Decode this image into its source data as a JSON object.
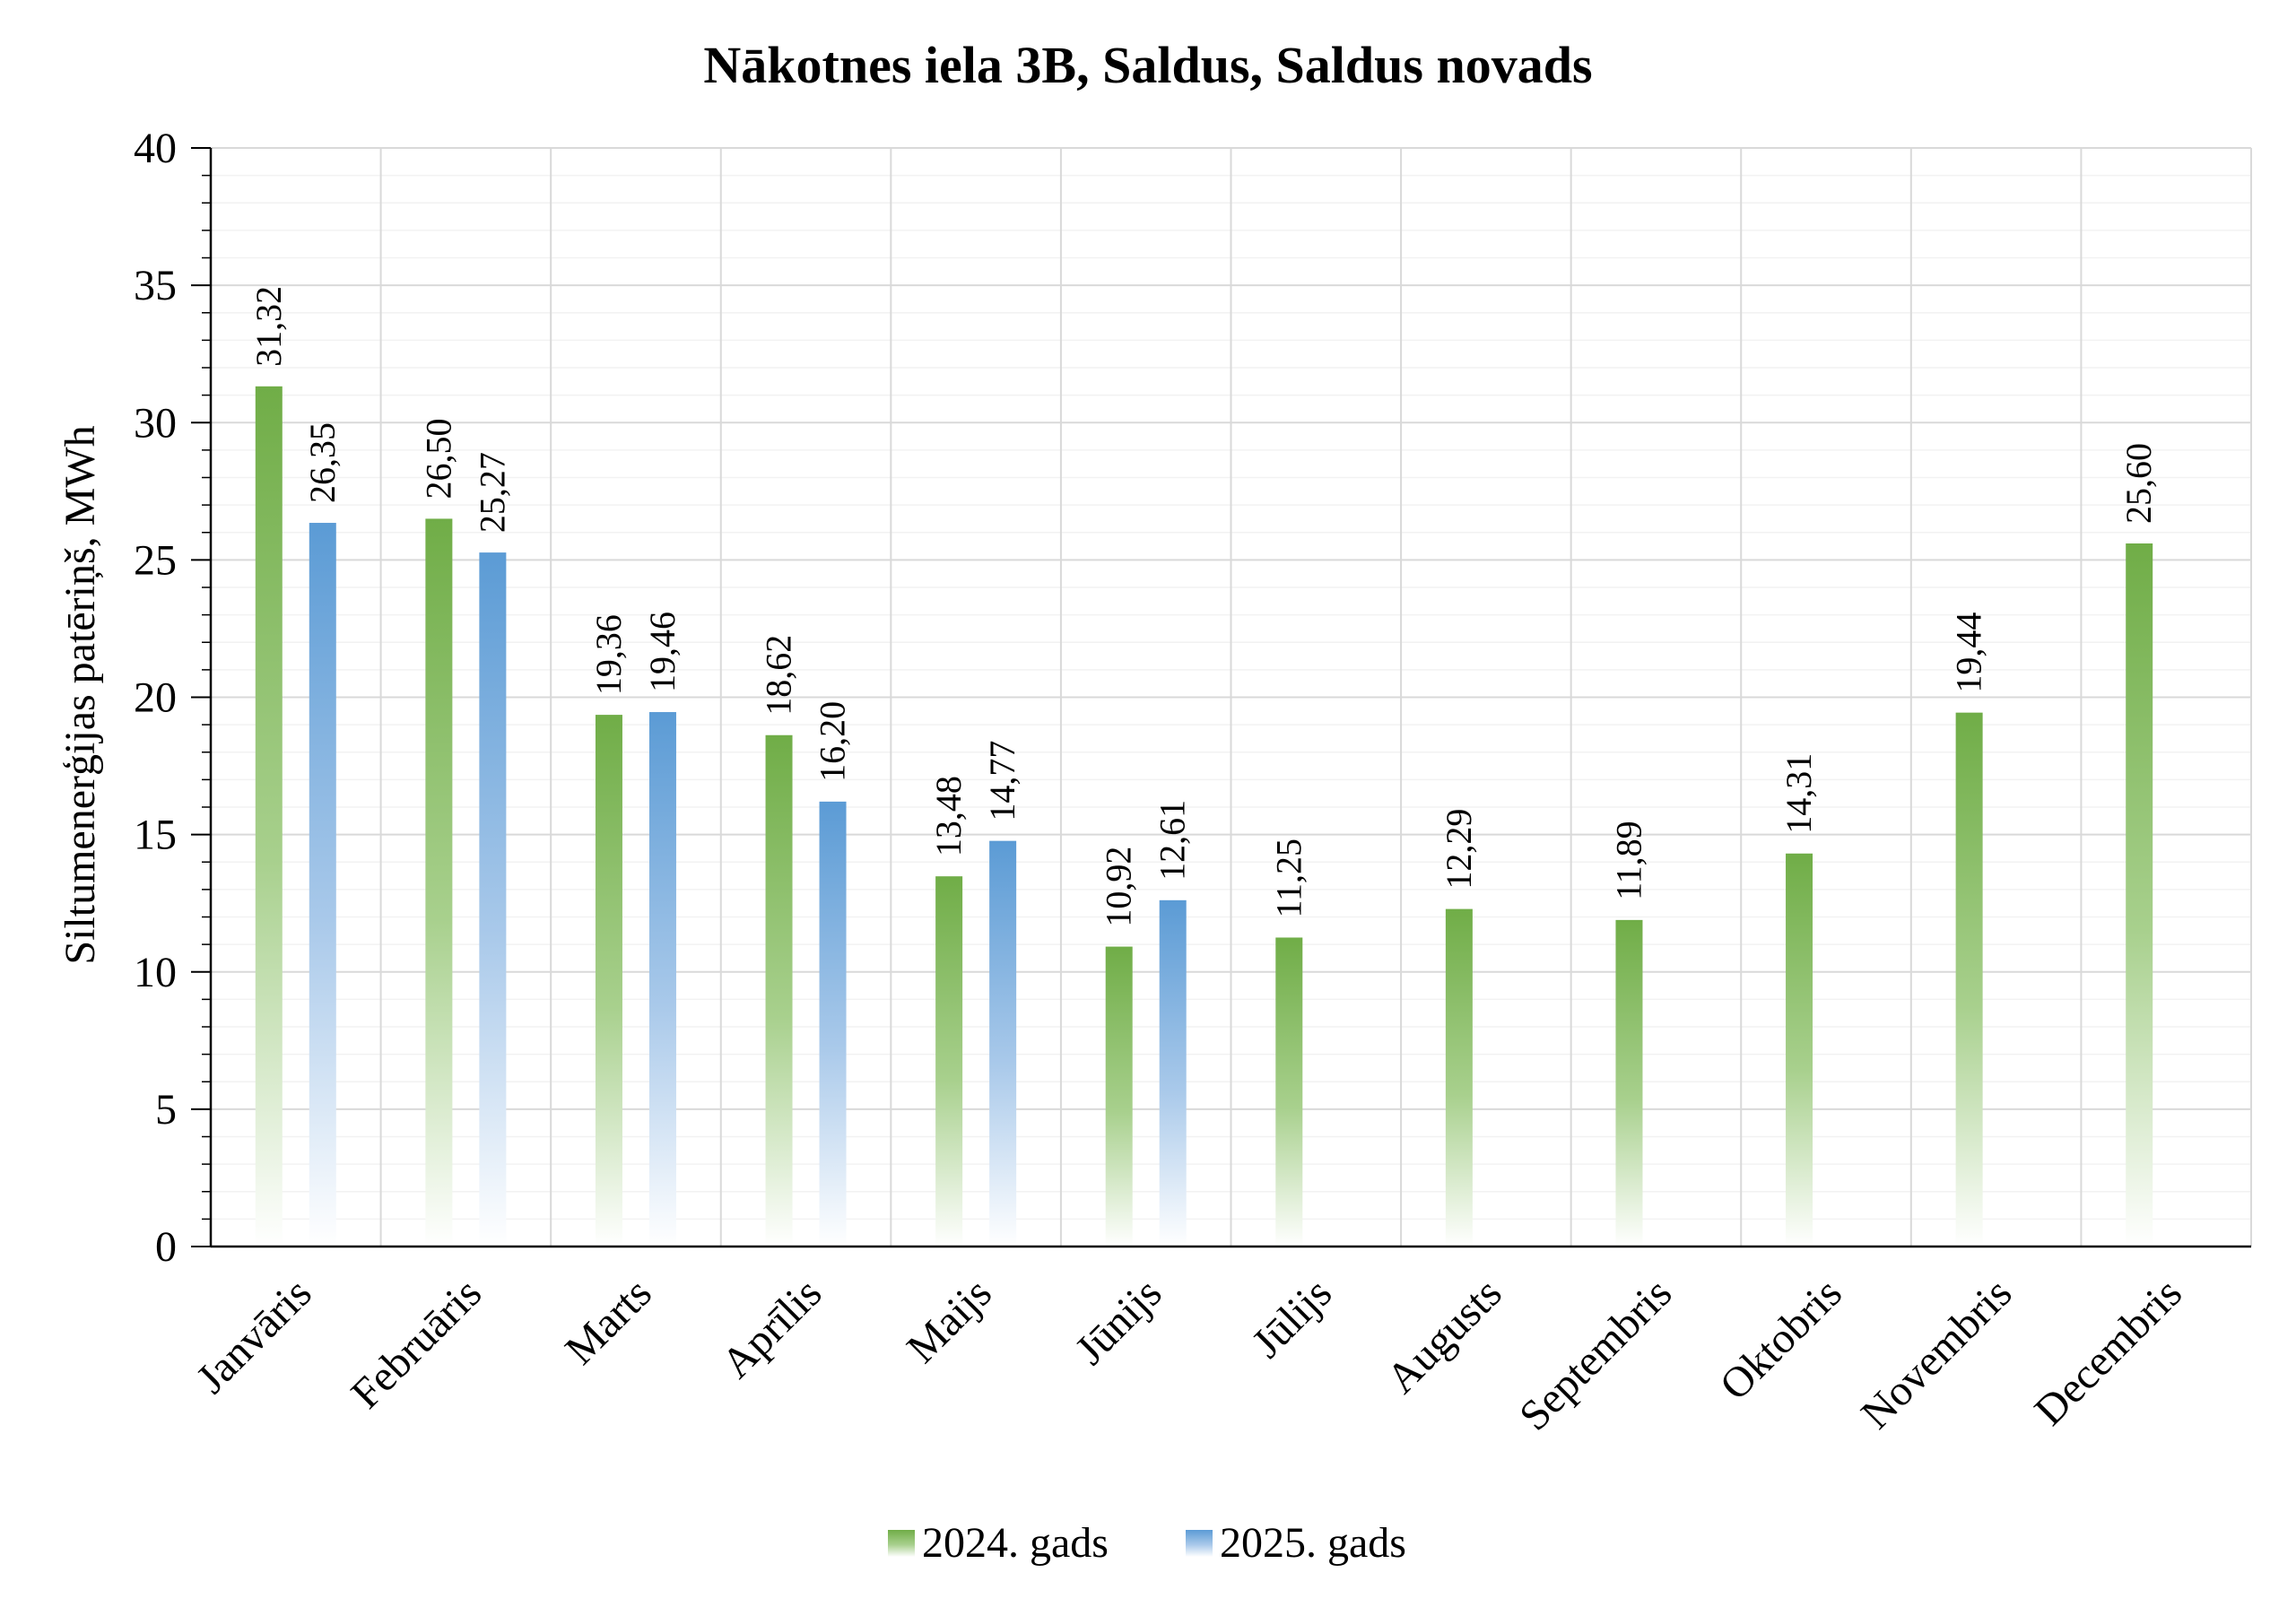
{
  "chart_data": {
    "type": "bar",
    "title": "Nākotnes iela 3B, Saldus, Saldus novads",
    "xlabel": "",
    "ylabel": "Siltumenerģijas patēriņš, MWh",
    "ylim": [
      0,
      40
    ],
    "yticks": [
      0,
      5,
      10,
      15,
      20,
      25,
      30,
      35,
      40
    ],
    "grid": true,
    "legend_position": "bottom",
    "categories": [
      "Janvāris",
      "Februāris",
      "Marts",
      "Aprīlis",
      "Maijs",
      "Jūnijs",
      "Jūlijs",
      "Augusts",
      "Septembris",
      "Oktobris",
      "Novembris",
      "Decembris"
    ],
    "series": [
      {
        "name": "2024. gads",
        "color": "#70AD47",
        "values": [
          31.32,
          26.5,
          19.36,
          18.62,
          13.48,
          10.92,
          11.25,
          12.29,
          11.89,
          14.31,
          19.44,
          25.6
        ],
        "labels": [
          "31,32",
          "26,50",
          "19,36",
          "18,62",
          "13,48",
          "10,92",
          "11,25",
          "12,29",
          "11,89",
          "14,31",
          "19,44",
          "25,60"
        ]
      },
      {
        "name": "2025. gads",
        "color": "#5B9BD5",
        "values": [
          26.35,
          25.27,
          19.46,
          16.2,
          14.77,
          12.61,
          null,
          null,
          null,
          null,
          null,
          null
        ],
        "labels": [
          "26,35",
          "25,27",
          "19,46",
          "16,20",
          "14,77",
          "12,61",
          "",
          "",
          "",
          "",
          "",
          ""
        ]
      }
    ]
  }
}
